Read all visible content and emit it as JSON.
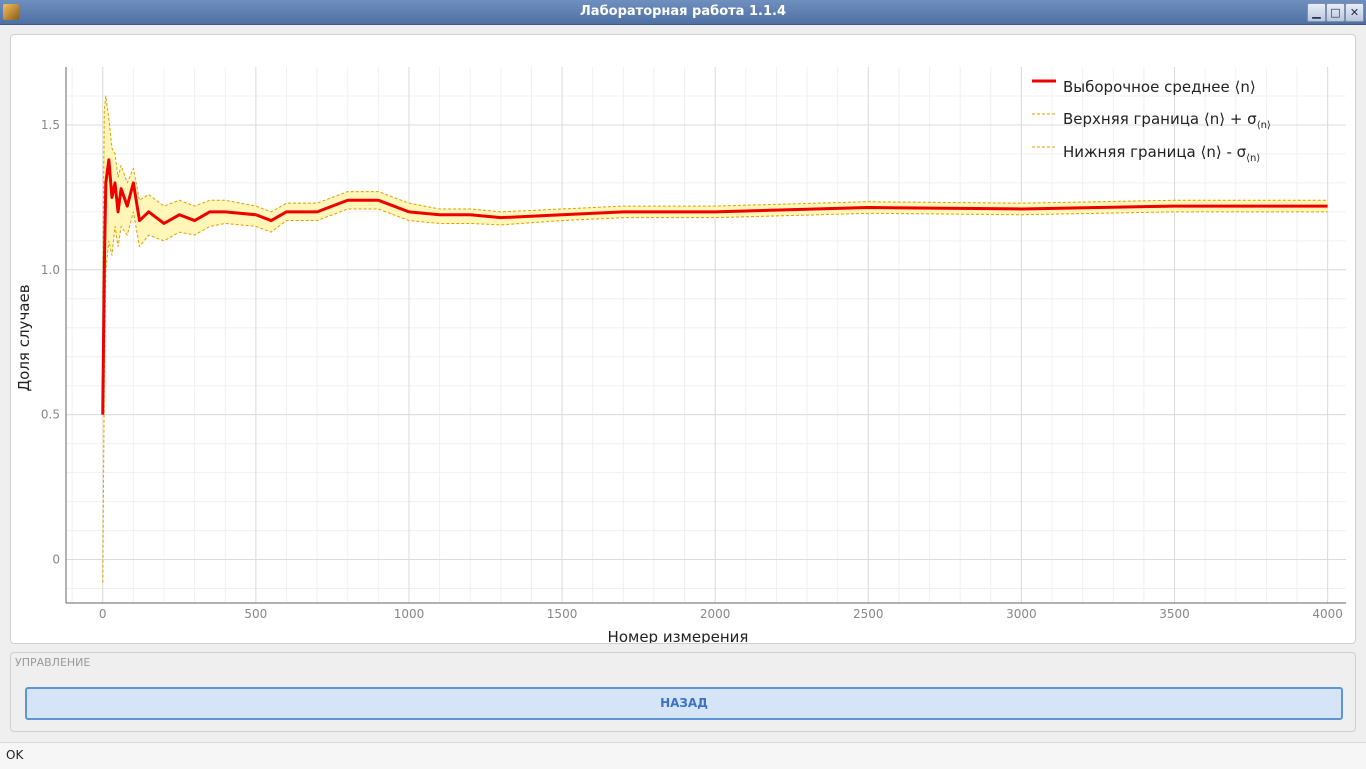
{
  "window": {
    "title": "Лабораторная работа 1.1.4",
    "buttons": [
      "minimize",
      "maximize",
      "close"
    ]
  },
  "chart_data": {
    "type": "line",
    "xlabel": "Номер измерения",
    "ylabel": "Доля случаев",
    "xlim": [
      -120,
      4060
    ],
    "ylim": [
      -0.15,
      1.7
    ],
    "x_ticks": [
      "0",
      "500",
      "1000",
      "1500",
      "2000",
      "2500",
      "3000",
      "3500",
      "4000"
    ],
    "y_ticks": [
      "0",
      "0.5",
      "1.0",
      "1.5"
    ],
    "grid": true,
    "legend_position": "top-right",
    "series": [
      {
        "name": "Выборочное среднее ⟨n⟩",
        "color": "#ee0000",
        "style": "solid",
        "x": [
          0,
          5,
          10,
          20,
          30,
          40,
          50,
          60,
          80,
          100,
          120,
          150,
          200,
          250,
          300,
          350,
          400,
          500,
          550,
          600,
          700,
          800,
          900,
          1000,
          1100,
          1200,
          1300,
          1500,
          1700,
          2000,
          2500,
          3000,
          3500,
          4000
        ],
        "values": [
          0.5,
          1.0,
          1.3,
          1.38,
          1.25,
          1.3,
          1.2,
          1.28,
          1.22,
          1.3,
          1.17,
          1.2,
          1.16,
          1.19,
          1.17,
          1.2,
          1.2,
          1.19,
          1.17,
          1.2,
          1.2,
          1.24,
          1.24,
          1.2,
          1.19,
          1.19,
          1.18,
          1.19,
          1.2,
          1.2,
          1.215,
          1.21,
          1.22,
          1.22
        ]
      },
      {
        "name": "Верхняя граница ⟨n⟩ + σ⟨n⟩",
        "color": "#e0a000",
        "style": "dashed",
        "x": [
          0,
          5,
          10,
          20,
          30,
          40,
          50,
          60,
          80,
          100,
          120,
          150,
          200,
          250,
          300,
          350,
          400,
          500,
          550,
          600,
          700,
          800,
          900,
          1000,
          1100,
          1200,
          1300,
          1500,
          1700,
          2000,
          2500,
          3000,
          3500,
          4000
        ],
        "values": [
          0.9,
          1.55,
          1.6,
          1.52,
          1.42,
          1.4,
          1.32,
          1.36,
          1.3,
          1.35,
          1.24,
          1.26,
          1.22,
          1.24,
          1.22,
          1.24,
          1.24,
          1.22,
          1.2,
          1.23,
          1.23,
          1.27,
          1.27,
          1.23,
          1.21,
          1.21,
          1.2,
          1.21,
          1.22,
          1.22,
          1.235,
          1.23,
          1.24,
          1.24
        ]
      },
      {
        "name": "Нижняя граница ⟨n⟩ - σ⟨n⟩",
        "color": "#e0a000",
        "style": "dashed",
        "x": [
          0,
          5,
          10,
          20,
          30,
          40,
          50,
          60,
          80,
          100,
          120,
          150,
          200,
          250,
          300,
          350,
          400,
          500,
          550,
          600,
          700,
          800,
          900,
          1000,
          1100,
          1200,
          1300,
          1500,
          1700,
          2000,
          2500,
          3000,
          3500,
          4000
        ],
        "values": [
          -0.08,
          0.6,
          1.0,
          1.1,
          1.05,
          1.15,
          1.08,
          1.15,
          1.12,
          1.2,
          1.08,
          1.12,
          1.1,
          1.13,
          1.12,
          1.15,
          1.16,
          1.15,
          1.13,
          1.17,
          1.17,
          1.21,
          1.21,
          1.17,
          1.16,
          1.16,
          1.155,
          1.17,
          1.18,
          1.18,
          1.195,
          1.19,
          1.2,
          1.2
        ]
      }
    ]
  },
  "legend": {
    "mean": "Выборочное среднее ⟨n⟩",
    "upper_main": "Верхняя граница ⟨n⟩ + σ",
    "upper_sub": "⟨n⟩",
    "lower_main": "Нижняя граница ⟨n⟩ - σ",
    "lower_sub": "⟨n⟩"
  },
  "controls": {
    "title": "УПРАВЛЕНИЕ",
    "back_label": "НАЗАД"
  },
  "status": {
    "text": "OK"
  }
}
